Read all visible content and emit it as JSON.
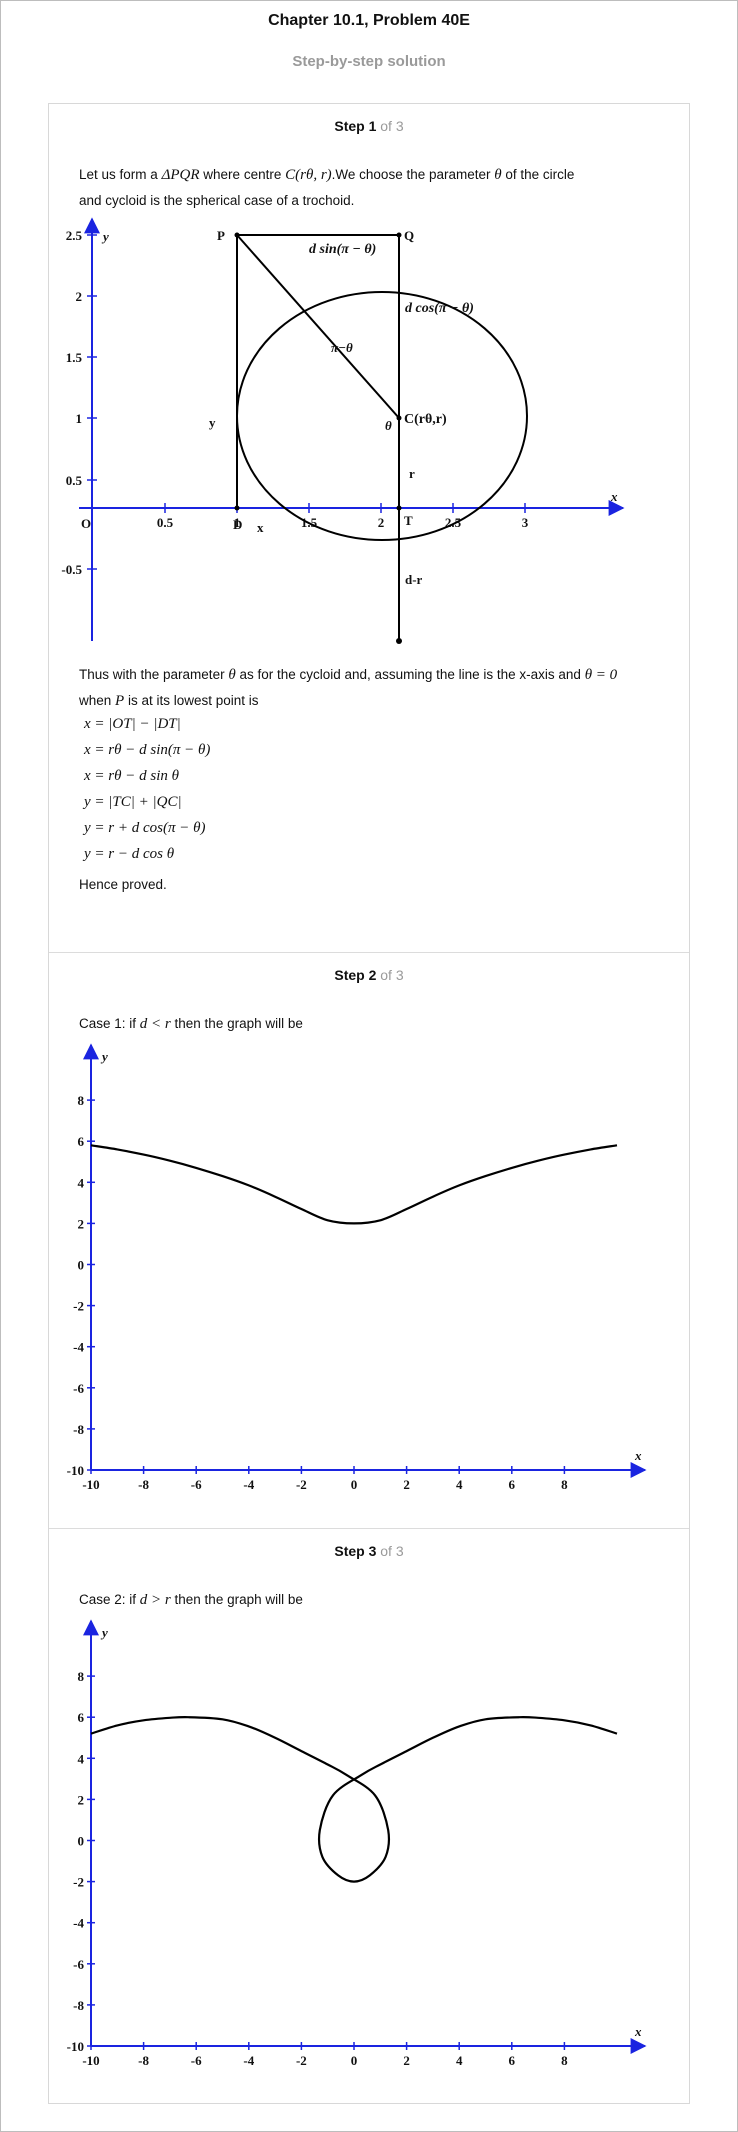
{
  "header": {
    "title": "Chapter 10.1, Problem 40E",
    "subtitle": "Step-by-step solution"
  },
  "steps": [
    {
      "step_label": "Step 1",
      "of_label": " of 3",
      "intro_1": "Let us form a",
      "intro_math_1": "ΔPQR",
      "intro_2": "where centre",
      "intro_math_2": "C(rθ, r)",
      "intro_3": ".We choose the parameter",
      "intro_math_3": "θ",
      "intro_4": "of the circle",
      "intro_line2": "and cycloid is the spherical case of a trochoid.",
      "figure": {
        "y_axis_label": "y",
        "x_axis_label": "x",
        "origin_label": "O",
        "x_ticks": [
          "0.5",
          "1",
          "1.5",
          "2",
          "2.5",
          "3"
        ],
        "y_ticks": [
          "2.5",
          "2",
          "1.5",
          "1",
          "0.5",
          "-0.5"
        ],
        "label_P": "P",
        "label_Q": "Q",
        "label_D": "D",
        "label_T": "T",
        "label_C": "C(rθ,r)",
        "label_theta": "θ",
        "label_pi_theta": "π−θ",
        "label_dsin": "d sin(π − θ)",
        "label_dcos": "d cos(π − θ)",
        "label_y": "y",
        "label_x": "x",
        "label_r": "r",
        "label_dr": "d-r"
      },
      "after_1": "Thus with the parameter",
      "after_math_1": "θ",
      "after_2": "as for the cycloid and, assuming the line is the x-axis and",
      "after_math_2": "θ = 0",
      "after_line2a": "when",
      "after_math_3": "P",
      "after_line2b": "is at its lowest point is",
      "equations": [
        "x = |OT| − |DT|",
        "x = rθ − d sin(π − θ)",
        "x = rθ − d sin θ",
        "y = |TC| + |QC|",
        "y = r + d cos(π − θ)",
        "y = r − d cos θ"
      ],
      "conclusion": "Hence proved."
    },
    {
      "step_label": "Step 2",
      "of_label": " of 3",
      "case_prefix": "Case 1: if",
      "case_math": "d < r",
      "case_suffix": "then the graph will be",
      "chart_data": {
        "type": "line",
        "title": "",
        "xlabel": "x",
        "ylabel": "y",
        "xlim": [
          -10,
          10
        ],
        "ylim": [
          -10,
          10
        ],
        "x_ticks": [
          -10,
          -8,
          -6,
          -4,
          -2,
          0,
          2,
          4,
          6,
          8
        ],
        "y_ticks": [
          -10,
          -8,
          -6,
          -4,
          -2,
          0,
          2,
          4,
          6,
          8
        ],
        "grid": false,
        "series": [
          {
            "x": [
              -10,
              -9,
              -8,
              -7,
              -6,
              -5,
              -4,
              -3,
              -2,
              -1,
              0,
              1,
              2,
              3,
              4,
              5,
              6,
              7,
              8,
              9,
              10
            ],
            "y": [
              5.8,
              5.6,
              5.35,
              5.05,
              4.7,
              4.3,
              3.85,
              3.3,
              2.7,
              2.15,
              2.0,
              2.15,
              2.7,
              3.3,
              3.85,
              4.3,
              4.7,
              5.05,
              5.35,
              5.6,
              5.8
            ]
          }
        ]
      }
    },
    {
      "step_label": "Step 3",
      "of_label": " of 3",
      "case_prefix": "Case 2: if",
      "case_math": "d > r",
      "case_suffix": "then the graph will be",
      "chart_data": {
        "type": "line",
        "title": "",
        "xlabel": "x",
        "ylabel": "y",
        "xlim": [
          -10,
          10
        ],
        "ylim": [
          -10,
          10
        ],
        "x_ticks": [
          -10,
          -8,
          -6,
          -4,
          -2,
          0,
          2,
          4,
          6,
          8
        ],
        "y_ticks": [
          -10,
          -8,
          -6,
          -4,
          -2,
          0,
          2,
          4,
          6,
          8
        ],
        "grid": false,
        "series": [
          {
            "x": [
              -10,
              -9,
              -8,
              -7,
              -6.3,
              -5,
              -4,
              -3,
              -2,
              -1,
              -0.3,
              0.8,
              1.3,
              1.2,
              0.6,
              0,
              -0.6,
              -1.2,
              -1.3,
              -0.8,
              0.3,
              1,
              2,
              3,
              4,
              5,
              6.3,
              7,
              8,
              9,
              10
            ],
            "y": [
              5.2,
              5.6,
              5.85,
              5.97,
              6.0,
              5.9,
              5.55,
              5.0,
              4.35,
              3.7,
              3.2,
              2.2,
              0.5,
              -0.8,
              -1.7,
              -2.0,
              -1.7,
              -0.8,
              0.5,
              2.2,
              3.2,
              3.7,
              4.35,
              5.0,
              5.55,
              5.9,
              6.0,
              5.97,
              5.85,
              5.6,
              5.2
            ]
          }
        ]
      }
    }
  ],
  "colors": {
    "axis": "#1a24e0",
    "curve": "#000000",
    "muted_text": "#9a9a9a"
  }
}
